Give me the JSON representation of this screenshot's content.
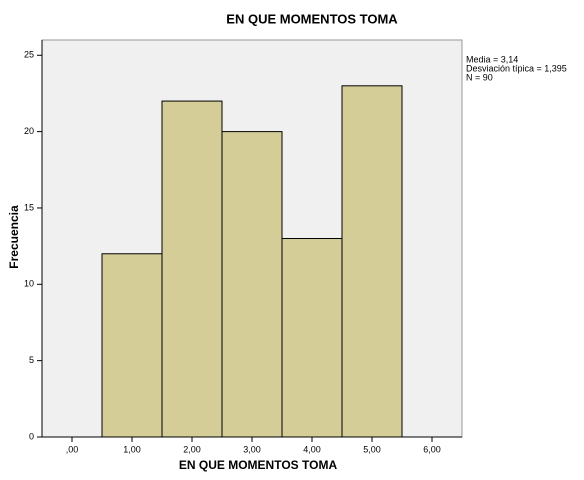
{
  "chart_data": {
    "type": "histogram",
    "title": "EN QUE MOMENTOS TOMA",
    "x_label": "EN QUE MOMENTOS TOMA",
    "y_label": "Frecuencia",
    "bins": [
      0.5,
      1.5,
      2.5,
      3.5,
      4.5,
      5.5
    ],
    "values": [
      12,
      22,
      20,
      13,
      23
    ],
    "color": "#d4cd98",
    "xlim": [
      -0.5,
      6.5
    ],
    "ylim": [
      0,
      26
    ],
    "xticks": [
      {
        "value": 0,
        "label": ",00"
      },
      {
        "value": 1,
        "label": "1,00"
      },
      {
        "value": 2,
        "label": "2,00"
      },
      {
        "value": 3,
        "label": "3,00"
      },
      {
        "value": 4,
        "label": "4,00"
      },
      {
        "value": 5,
        "label": "5,00"
      },
      {
        "value": 6,
        "label": "6,00"
      }
    ],
    "yticks": [
      0,
      5,
      10,
      15,
      20,
      25
    ],
    "annotations": [
      "Media = 3,14",
      "Desviación típica = 1,395",
      "N = 90"
    ]
  }
}
